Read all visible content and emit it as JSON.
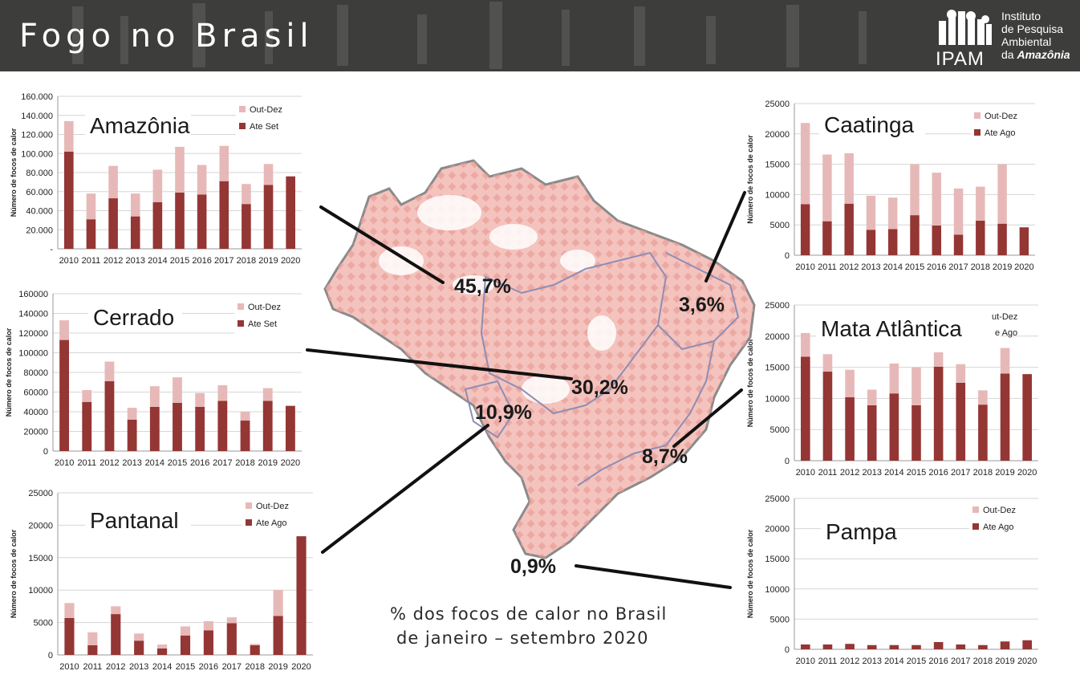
{
  "header": {
    "title": "Fogo no Brasil",
    "logo": {
      "acronym": "IPAM",
      "lines": [
        "Instituto",
        "de Pesquisa",
        "Ambiental",
        "da"
      ],
      "emph": "Amazônia"
    }
  },
  "colors": {
    "header_bg": "#3d3d3b",
    "ate": "#943634",
    "out": "#e6b9b8",
    "map_fill": "#f2b6b1"
  },
  "map": {
    "percentages": {
      "amazonia": "45,7%",
      "cerrado": "30,2%",
      "pantanal": "10,9%",
      "caatinga": "3,6%",
      "mata": "8,7%",
      "pampa": "0,9%"
    },
    "caption": [
      "% dos focos de calor no Brasil",
      "de janeiro  – setembro 2020"
    ]
  },
  "chart_data": [
    {
      "id": "amazonia",
      "type": "bar",
      "stacked": true,
      "title": "Amazônia",
      "ylabel": "Número de focos de calor",
      "categories": [
        "2010",
        "2011",
        "2012",
        "2013",
        "2014",
        "2015",
        "2016",
        "2017",
        "2018",
        "2019",
        "2020"
      ],
      "ylim": [
        0,
        160000
      ],
      "yticks": [
        "-",
        "20.000",
        "40.000",
        "60.000",
        "80.000",
        "100.000",
        "120.000",
        "140.000",
        "160.000"
      ],
      "grid": true,
      "legend": "top-right",
      "series": [
        {
          "name": "Ate Set",
          "values": [
            102000,
            31000,
            53000,
            34000,
            49000,
            59000,
            57000,
            71000,
            47000,
            67000,
            76000
          ]
        },
        {
          "name": "Out-Dez",
          "values": [
            32000,
            27000,
            34000,
            24000,
            34000,
            48000,
            31000,
            37000,
            21000,
            22000,
            0
          ]
        }
      ]
    },
    {
      "id": "cerrado",
      "type": "bar",
      "stacked": true,
      "title": "Cerrado",
      "ylabel": "Número de focos de calor",
      "categories": [
        "2010",
        "2011",
        "2012",
        "2013",
        "2014",
        "2015",
        "2016",
        "2017",
        "2018",
        "2019",
        "2020"
      ],
      "ylim": [
        0,
        160000
      ],
      "yticks": [
        "0",
        "20000",
        "40000",
        "60000",
        "80000",
        "100000",
        "120000",
        "140000",
        "160000"
      ],
      "grid": true,
      "legend": "top-right",
      "series": [
        {
          "name": "Ate Set",
          "values": [
            113000,
            50000,
            71000,
            32000,
            45000,
            49000,
            45000,
            51000,
            31000,
            51000,
            46000
          ]
        },
        {
          "name": "Out-Dez",
          "values": [
            20000,
            12000,
            20000,
            12000,
            21000,
            26000,
            14000,
            16000,
            9000,
            13000,
            0
          ]
        }
      ]
    },
    {
      "id": "pantanal",
      "type": "bar",
      "stacked": true,
      "title": "Pantanal",
      "ylabel": "Número de focos de calor",
      "categories": [
        "2010",
        "2011",
        "2012",
        "2013",
        "2014",
        "2015",
        "2016",
        "2017",
        "2018",
        "2019",
        "2020"
      ],
      "ylim": [
        0,
        25000
      ],
      "yticks": [
        "0",
        "5000",
        "10000",
        "15000",
        "20000",
        "25000"
      ],
      "grid": true,
      "legend": "top-right",
      "series": [
        {
          "name": "Ate Ago",
          "values": [
            5700,
            1500,
            6300,
            2200,
            1000,
            3000,
            3800,
            4900,
            1500,
            6000,
            18300
          ]
        },
        {
          "name": "Out-Dez",
          "values": [
            2300,
            2000,
            1200,
            1100,
            600,
            1400,
            1400,
            900,
            200,
            4000,
            0
          ]
        }
      ]
    },
    {
      "id": "caatinga",
      "type": "bar",
      "stacked": true,
      "title": "Caatinga",
      "ylabel": "Número de focos de calor",
      "categories": [
        "2010",
        "2011",
        "2012",
        "2013",
        "2014",
        "2015",
        "2016",
        "2017",
        "2018",
        "2019",
        "2020"
      ],
      "ylim": [
        0,
        25000
      ],
      "yticks": [
        "0",
        "5000",
        "10000",
        "15000",
        "20000",
        "25000"
      ],
      "grid": true,
      "legend": "top-right",
      "series": [
        {
          "name": "Ate Ago",
          "values": [
            8400,
            5600,
            8500,
            4200,
            4300,
            6600,
            4900,
            3400,
            5700,
            5200,
            4600
          ]
        },
        {
          "name": "Out-Dez",
          "values": [
            13400,
            11000,
            8300,
            5600,
            5200,
            8400,
            8700,
            7600,
            5600,
            9800,
            0
          ]
        }
      ]
    },
    {
      "id": "mata",
      "type": "bar",
      "stacked": true,
      "title": "Mata Atlântica",
      "ylabel": "Número de focos de calor",
      "categories": [
        "2010",
        "2011",
        "2012",
        "2013",
        "2014",
        "2015",
        "2016",
        "2017",
        "2018",
        "2019",
        "2020"
      ],
      "ylim": [
        0,
        25000
      ],
      "yticks": [
        "0",
        "5000",
        "10000",
        "15000",
        "20000",
        "25000"
      ],
      "grid": true,
      "legend": "top-right",
      "legend_partial": [
        "ut-Dez",
        "e Ago"
      ],
      "series": [
        {
          "name": "Ate Ago",
          "values": [
            16700,
            14300,
            10200,
            8900,
            10800,
            8900,
            15100,
            12500,
            9000,
            14000,
            13900
          ]
        },
        {
          "name": "Out-Dez",
          "values": [
            3800,
            2800,
            4400,
            2500,
            4800,
            6100,
            2300,
            3000,
            2300,
            4100,
            0
          ]
        }
      ]
    },
    {
      "id": "pampa",
      "type": "bar",
      "stacked": true,
      "title": "Pampa",
      "ylabel": "Número de focos de calor",
      "categories": [
        "2010",
        "2011",
        "2012",
        "2013",
        "2014",
        "2015",
        "2016",
        "2017",
        "2018",
        "2019",
        "2020"
      ],
      "ylim": [
        0,
        25000
      ],
      "yticks": [
        "0",
        "5000",
        "10000",
        "15000",
        "20000",
        "25000"
      ],
      "grid": true,
      "legend": "top-right",
      "series": [
        {
          "name": "Ate Ago",
          "values": [
            800,
            800,
            900,
            700,
            700,
            700,
            1200,
            800,
            700,
            1300,
            1500
          ]
        },
        {
          "name": "Out-Dez",
          "values": [
            0,
            0,
            0,
            0,
            0,
            0,
            0,
            0,
            0,
            0,
            0
          ]
        }
      ]
    }
  ]
}
